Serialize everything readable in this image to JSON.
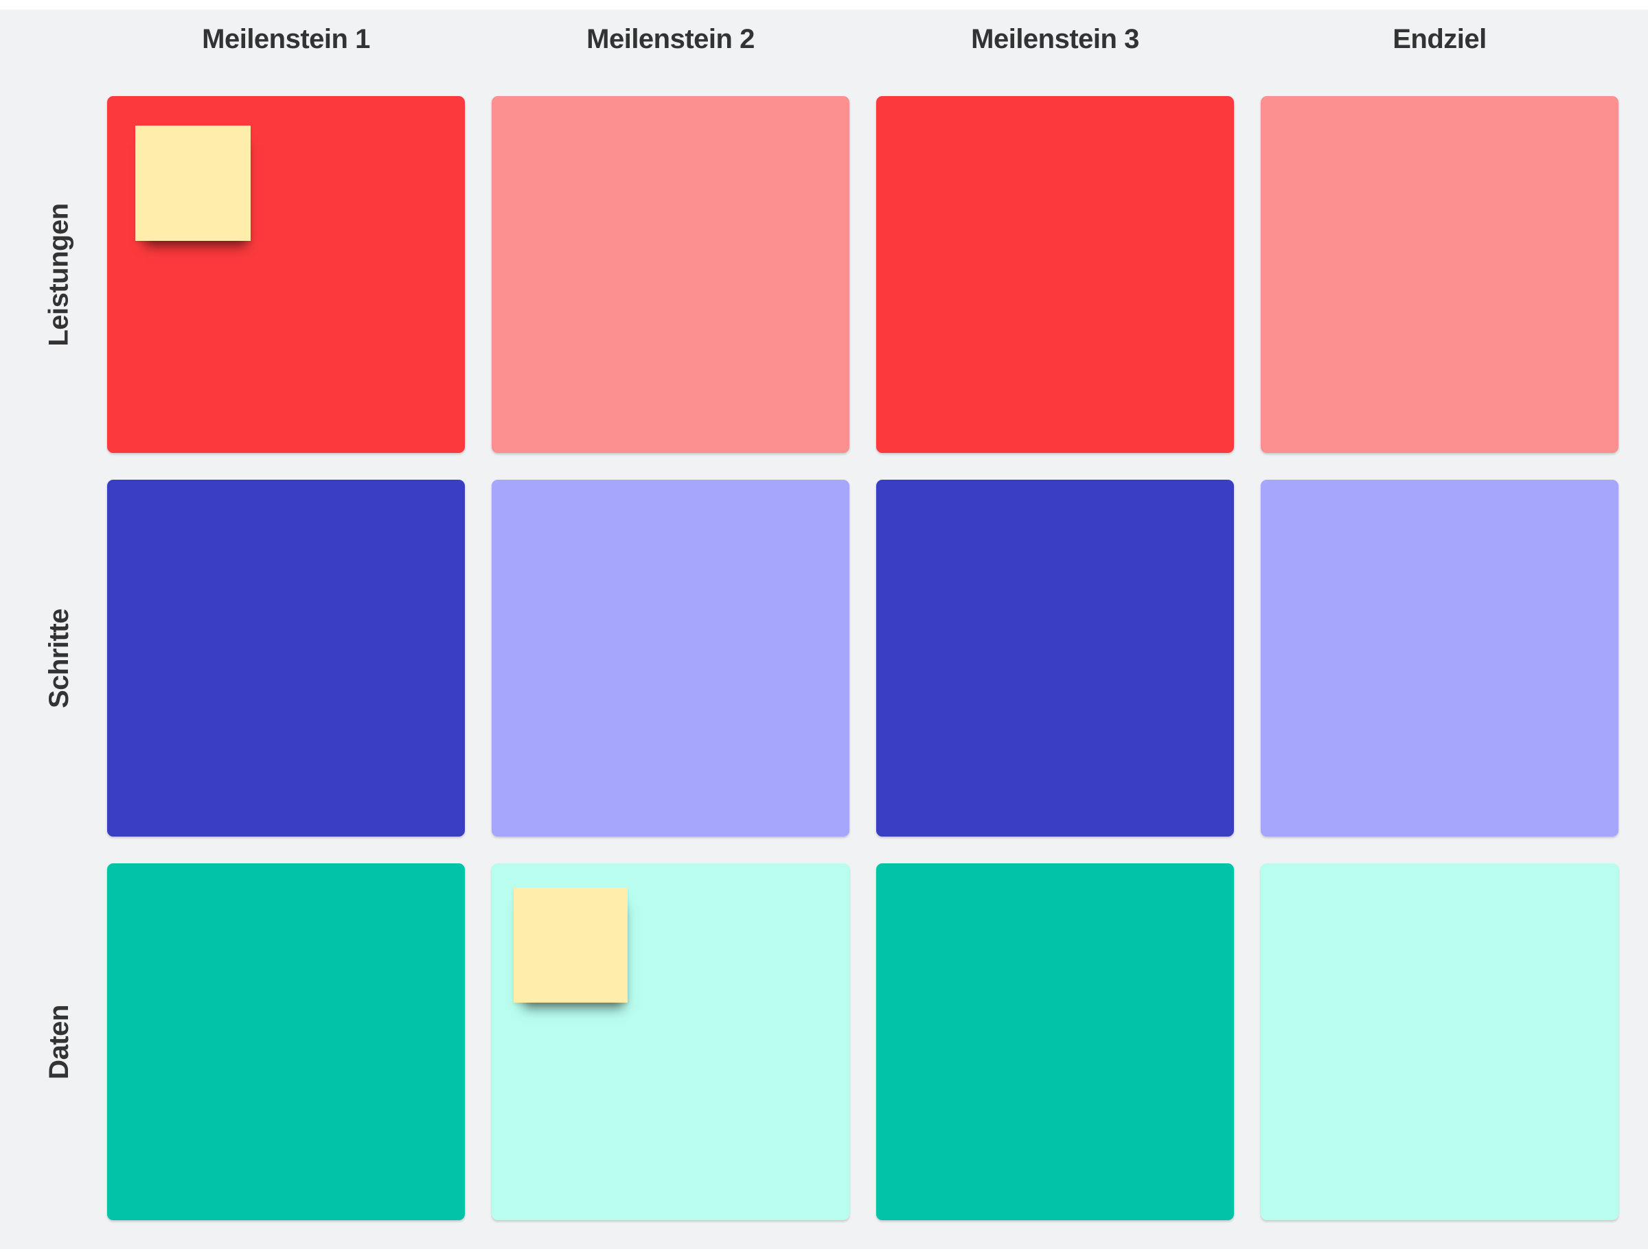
{
  "palette": {
    "page_edge": "#ffffff",
    "background": "#f0f2f4",
    "heading_text": "#333333",
    "red": "#fc3a3d",
    "salmon": "#fc9091",
    "indigo": "#3a3ec4",
    "periwinkle": "#a6a6fd",
    "teal": "#00c3a8",
    "mint": "#b8fdee",
    "sticky_yellow": "#ffeeab"
  },
  "columns": [
    "Meilenstein 1",
    "Meilenstein 2",
    "Meilenstein 3",
    "Endziel"
  ],
  "rows": [
    {
      "label": "Leistungen",
      "cells": [
        {
          "tone": "red",
          "sticky": {
            "x": 41,
            "y": 43,
            "w": 168,
            "h": 168
          }
        },
        {
          "tone": "salmon"
        },
        {
          "tone": "red"
        },
        {
          "tone": "salmon"
        }
      ]
    },
    {
      "label": "Schritte",
      "cells": [
        {
          "tone": "indigo"
        },
        {
          "tone": "periwinkle"
        },
        {
          "tone": "indigo"
        },
        {
          "tone": "periwinkle"
        }
      ]
    },
    {
      "label": "Daten",
      "cells": [
        {
          "tone": "teal"
        },
        {
          "tone": "mint",
          "sticky": {
            "x": 32,
            "y": 35,
            "w": 166,
            "h": 168
          }
        },
        {
          "tone": "teal"
        },
        {
          "tone": "mint"
        }
      ]
    }
  ]
}
